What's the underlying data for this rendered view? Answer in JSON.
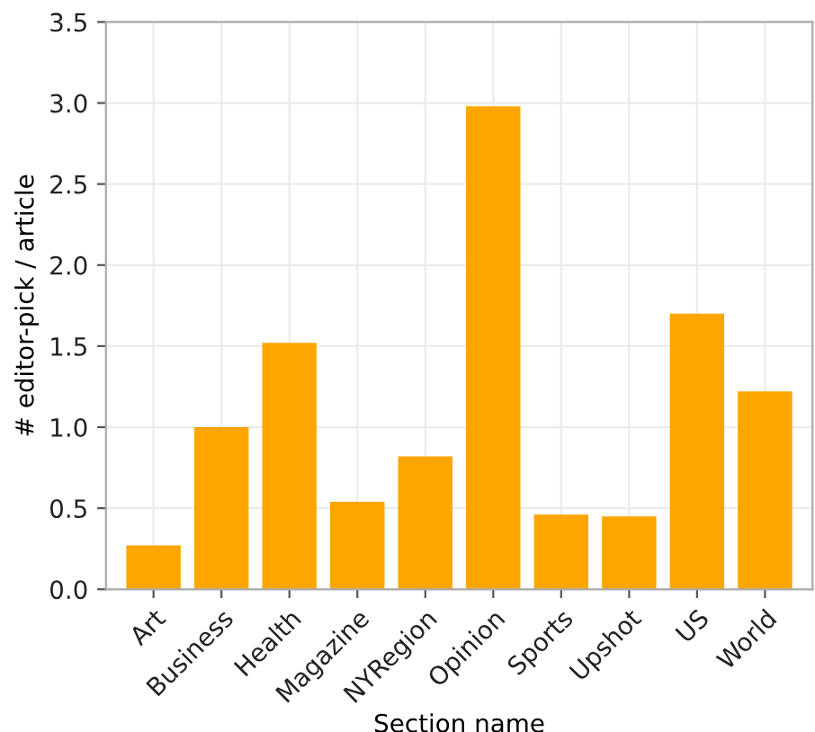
{
  "chart_data": {
    "type": "bar",
    "xlabel": "Section name",
    "ylabel": "# editor-pick / article",
    "categories": [
      "Art",
      "Business",
      "Health",
      "Magazine",
      "NYRegion",
      "Opinion",
      "Sports",
      "Upshot",
      "US",
      "World"
    ],
    "values": [
      0.27,
      1.0,
      1.52,
      0.54,
      0.82,
      2.98,
      0.46,
      0.45,
      1.7,
      1.22
    ],
    "color": "#ffa500",
    "ylim": [
      0,
      3.5
    ],
    "yticks": [
      {
        "value": 0,
        "label": "0.0"
      },
      {
        "value": 0.5,
        "label": "0.5"
      },
      {
        "value": 1,
        "label": "1.0"
      },
      {
        "value": 1.5,
        "label": "1.5"
      },
      {
        "value": 2,
        "label": "2.0"
      },
      {
        "value": 2.5,
        "label": "2.5"
      },
      {
        "value": 3,
        "label": "3.0"
      },
      {
        "value": 3.5,
        "label": "3.5"
      }
    ],
    "grid": true
  }
}
